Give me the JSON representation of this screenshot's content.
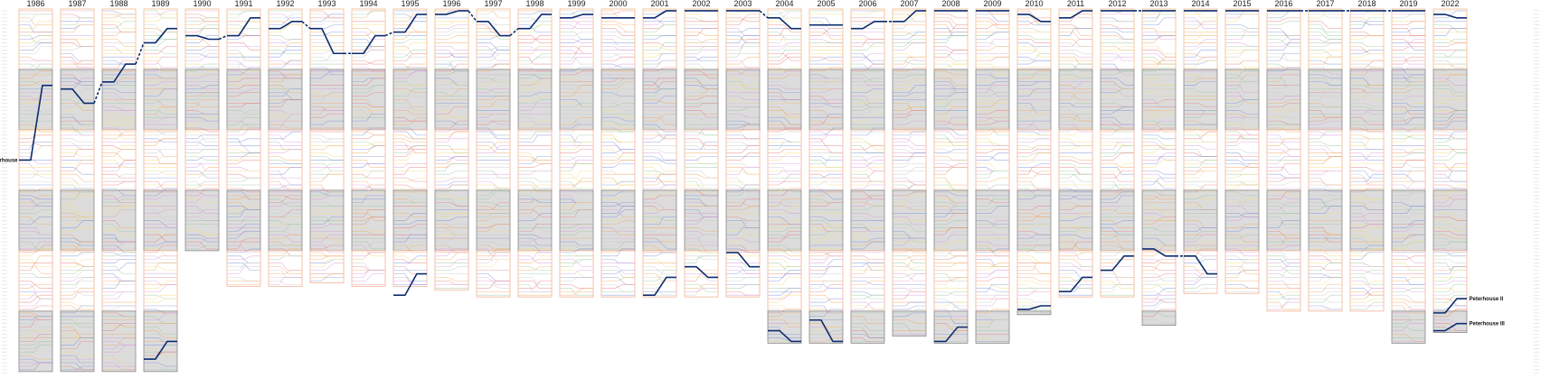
{
  "chart_data": {
    "type": "line",
    "title": "",
    "x": [
      "1986",
      "1987",
      "1988",
      "1989",
      "1990",
      "1991",
      "1992",
      "1993",
      "1994",
      "1995",
      "1996",
      "1997",
      "1998",
      "1999",
      "2000",
      "2001",
      "2002",
      "2003",
      "2004",
      "2005",
      "2006",
      "2007",
      "2008",
      "2009",
      "2010",
      "2011",
      "2012",
      "2013",
      "2014",
      "2015",
      "2016",
      "2017",
      "2018",
      "2019",
      "2022"
    ],
    "y_axis": {
      "meaning": "bumps position (1 = head of the river)",
      "inverted": true,
      "range": [
        1,
        103
      ]
    },
    "grid": false,
    "legend": "none",
    "highlight_color": "#0c2c6e",
    "background_line_colors": [
      "#e57c7c",
      "#7b8fd6",
      "#f0a860",
      "#c9c9c9",
      "#9cc79c",
      "#d89ad8",
      "#f3d97a"
    ],
    "divisions": {
      "1986": [
        17,
        17,
        17,
        17,
        17,
        17
      ],
      "1987": [
        17,
        17,
        17,
        17,
        17,
        17
      ],
      "1988": [
        17,
        17,
        17,
        17,
        17,
        17
      ],
      "1989": [
        17,
        17,
        17,
        17,
        17,
        17
      ],
      "1990": [
        17,
        17,
        17,
        17
      ],
      "1991": [
        17,
        17,
        17,
        17,
        10
      ],
      "1992": [
        17,
        17,
        17,
        17,
        10
      ],
      "1993": [
        17,
        17,
        17,
        17,
        9
      ],
      "1994": [
        17,
        17,
        17,
        17,
        10
      ],
      "1995": [
        17,
        17,
        17,
        17,
        10
      ],
      "1996": [
        17,
        17,
        17,
        17,
        11
      ],
      "1997": [
        17,
        17,
        17,
        17,
        13
      ],
      "1998": [
        17,
        17,
        17,
        17,
        13
      ],
      "1999": [
        17,
        17,
        17,
        17,
        13
      ],
      "2000": [
        17,
        17,
        17,
        17,
        13
      ],
      "2001": [
        17,
        17,
        17,
        17,
        13
      ],
      "2002": [
        17,
        17,
        17,
        17,
        13
      ],
      "2003": [
        17,
        17,
        17,
        17,
        13
      ],
      "2004": [
        17,
        17,
        17,
        17,
        17,
        9
      ],
      "2005": [
        17,
        17,
        17,
        17,
        17,
        9
      ],
      "2006": [
        17,
        17,
        17,
        17,
        17,
        9
      ],
      "2007": [
        17,
        17,
        17,
        17,
        17,
        7
      ],
      "2008": [
        17,
        17,
        17,
        17,
        17,
        9
      ],
      "2009": [
        17,
        17,
        17,
        17,
        17,
        9
      ],
      "2010": [
        17,
        17,
        17,
        17,
        17,
        1
      ],
      "2011": [
        17,
        17,
        17,
        17,
        13
      ],
      "2012": [
        17,
        17,
        17,
        17,
        13
      ],
      "2013": [
        17,
        17,
        17,
        17,
        17,
        4
      ],
      "2014": [
        17,
        17,
        17,
        17,
        12
      ],
      "2015": [
        17,
        17,
        17,
        17,
        12
      ],
      "2016": [
        17,
        17,
        17,
        17,
        17
      ],
      "2017": [
        17,
        17,
        17,
        17,
        17
      ],
      "2018": [
        17,
        17,
        17,
        17,
        17
      ],
      "2019": [
        17,
        17,
        17,
        17,
        17,
        9
      ],
      "2022": [
        17,
        17,
        17,
        17,
        17,
        6
      ]
    },
    "series": [
      {
        "name": "Peterhouse",
        "label_side": "left",
        "segments": [
          {
            "type": "race",
            "year": "1986",
            "start": 43,
            "end": 22
          },
          {
            "type": "race",
            "year": "1987",
            "start": 23,
            "end": 27
          },
          {
            "type": "gap",
            "from_year": "1987",
            "to_year": "1988",
            "start": 27,
            "end": 21
          },
          {
            "type": "race",
            "year": "1988",
            "start": 21,
            "end": 16
          },
          {
            "type": "gap",
            "from_year": "1988",
            "to_year": "1989",
            "start": 16,
            "end": 10
          },
          {
            "type": "race",
            "year": "1989",
            "start": 10,
            "end": 6
          },
          {
            "type": "race",
            "year": "1990",
            "start": 8,
            "end": 9
          },
          {
            "type": "gap",
            "from_year": "1990",
            "to_year": "1991",
            "start": 9,
            "end": 8
          },
          {
            "type": "race",
            "year": "1991",
            "start": 8,
            "end": 3
          },
          {
            "type": "race",
            "year": "1992",
            "start": 6,
            "end": 4
          },
          {
            "type": "gap",
            "from_year": "1992",
            "to_year": "1993",
            "start": 4,
            "end": 6
          },
          {
            "type": "race",
            "year": "1993",
            "start": 6,
            "end": 13
          },
          {
            "type": "gap",
            "from_year": "1993",
            "to_year": "1994",
            "start": 13,
            "end": 13
          },
          {
            "type": "race",
            "year": "1994",
            "start": 13,
            "end": 8
          },
          {
            "type": "gap",
            "from_year": "1994",
            "to_year": "1995",
            "start": 8,
            "end": 7
          },
          {
            "type": "race",
            "year": "1995",
            "start": 7,
            "end": 2
          },
          {
            "type": "race",
            "year": "1996",
            "start": 2,
            "end": 1
          },
          {
            "type": "gap",
            "from_year": "1996",
            "to_year": "1997",
            "start": 1,
            "end": 4
          },
          {
            "type": "race",
            "year": "1997",
            "start": 4,
            "end": 8
          },
          {
            "type": "gap",
            "from_year": "1997",
            "to_year": "1998",
            "start": 8,
            "end": 6
          },
          {
            "type": "race",
            "year": "1998",
            "start": 6,
            "end": 2
          },
          {
            "type": "race",
            "year": "1999",
            "start": 3,
            "end": 2
          },
          {
            "type": "race",
            "year": "2000",
            "start": 3,
            "end": 3
          },
          {
            "type": "race",
            "year": "2001",
            "start": 3,
            "end": 1
          },
          {
            "type": "race",
            "year": "2002",
            "start": 1,
            "end": 1
          },
          {
            "type": "race",
            "year": "2003",
            "start": 1,
            "end": 1
          },
          {
            "type": "gap",
            "from_year": "2003",
            "to_year": "2004",
            "start": 1,
            "end": 3
          },
          {
            "type": "race",
            "year": "2004",
            "start": 3,
            "end": 6
          },
          {
            "type": "race",
            "year": "2005",
            "start": 5,
            "end": 5
          },
          {
            "type": "race",
            "year": "2006",
            "start": 6,
            "end": 4
          },
          {
            "type": "gap",
            "from_year": "2006",
            "to_year": "2007",
            "start": 4,
            "end": 4
          },
          {
            "type": "race",
            "year": "2007",
            "start": 4,
            "end": 1
          },
          {
            "type": "race",
            "year": "2008",
            "start": 1,
            "end": 1
          },
          {
            "type": "race",
            "year": "2009",
            "start": 1,
            "end": 1
          },
          {
            "type": "race",
            "year": "2010",
            "start": 2,
            "end": 4
          },
          {
            "type": "race",
            "year": "2011",
            "start": 3,
            "end": 1
          },
          {
            "type": "race",
            "year": "2012",
            "start": 1,
            "end": 1
          },
          {
            "type": "gap",
            "from_year": "2012",
            "to_year": "2013",
            "start": 1,
            "end": 1
          },
          {
            "type": "race",
            "year": "2013",
            "start": 1,
            "end": 1
          },
          {
            "type": "race",
            "year": "2014",
            "start": 1,
            "end": 1
          },
          {
            "type": "race",
            "year": "2015",
            "start": 1,
            "end": 1
          },
          {
            "type": "race",
            "year": "2016",
            "start": 1,
            "end": 1
          },
          {
            "type": "gap",
            "from_year": "2016",
            "to_year": "2017",
            "start": 1,
            "end": 1
          },
          {
            "type": "race",
            "year": "2017",
            "start": 1,
            "end": 1
          },
          {
            "type": "gap",
            "from_year": "2017",
            "to_year": "2018",
            "start": 1,
            "end": 1
          },
          {
            "type": "race",
            "year": "2018",
            "start": 1,
            "end": 1
          },
          {
            "type": "gap",
            "from_year": "2018",
            "to_year": "2019",
            "start": 1,
            "end": 1
          },
          {
            "type": "race",
            "year": "2019",
            "start": 1,
            "end": 1
          },
          {
            "type": "race",
            "year": "2022",
            "start": 2,
            "end": 3
          }
        ]
      },
      {
        "name": "Peterhouse II",
        "label_side": "right",
        "segments": [
          {
            "type": "race",
            "year": "1989",
            "start": 99,
            "end": 94
          },
          {
            "type": "race",
            "year": "1995",
            "start": 81,
            "end": 75
          },
          {
            "type": "race",
            "year": "2001",
            "start": 81,
            "end": 76
          },
          {
            "type": "race",
            "year": "2002",
            "start": 73,
            "end": 76
          },
          {
            "type": "race",
            "year": "2003",
            "start": 69,
            "end": 73
          },
          {
            "type": "race",
            "year": "2004",
            "start": 91,
            "end": 94
          },
          {
            "type": "race",
            "year": "2005",
            "start": 88,
            "end": 94
          },
          {
            "type": "race",
            "year": "2008",
            "start": 94,
            "end": 90
          },
          {
            "type": "race",
            "year": "2010",
            "start": 85,
            "end": 84
          },
          {
            "type": "race",
            "year": "2011",
            "start": 80,
            "end": 76
          },
          {
            "type": "race",
            "year": "2012",
            "start": 74,
            "end": 70
          },
          {
            "type": "race",
            "year": "2013",
            "start": 68,
            "end": 70
          },
          {
            "type": "gap",
            "from_year": "2013",
            "to_year": "2014",
            "start": 70,
            "end": 70
          },
          {
            "type": "race",
            "year": "2014",
            "start": 70,
            "end": 75
          },
          {
            "type": "race",
            "year": "2022",
            "start": 86,
            "end": 82
          }
        ]
      },
      {
        "name": "Peterhouse III",
        "label_side": "right",
        "segments": [
          {
            "type": "race",
            "year": "2022",
            "start": 91,
            "end": 89
          }
        ]
      }
    ]
  }
}
